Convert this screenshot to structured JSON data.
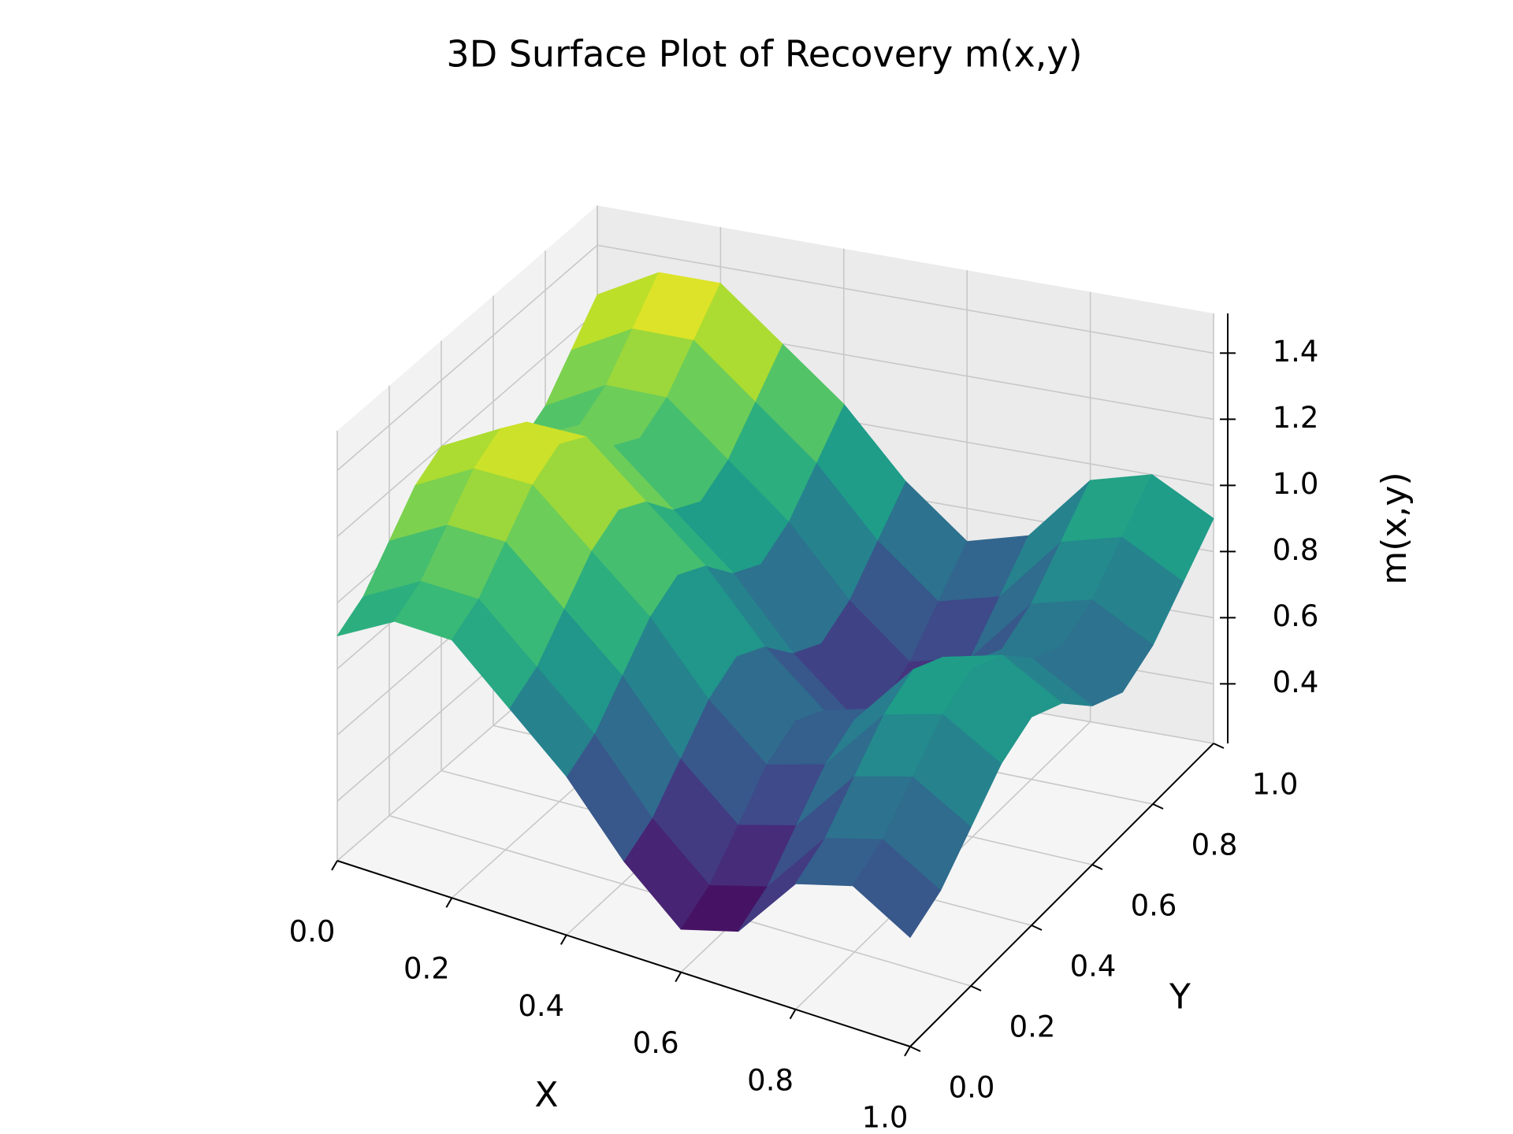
{
  "chart_data": {
    "type": "surface",
    "title": "3D Surface Plot of Recovery m(x,y)",
    "x_label": "X",
    "y_label": "Y",
    "z_label": "m(x,y)",
    "colormap": "viridis",
    "grid": true,
    "x": [
      0,
      0.1,
      0.2,
      0.3,
      0.4,
      0.5,
      0.6,
      0.7,
      0.8,
      0.9,
      1
    ],
    "y": [
      0,
      0.1,
      0.2,
      0.3,
      0.4,
      0.5,
      0.6,
      0.7,
      0.8,
      0.9,
      1
    ],
    "z": [
      [
        0.9,
        1.0,
        1.0,
        0.85,
        0.7,
        0.5,
        0.35,
        0.4,
        0.6,
        0.65,
        0.55
      ],
      [
        0.95,
        1.05,
        1.05,
        0.9,
        0.75,
        0.55,
        0.4,
        0.45,
        0.65,
        0.7,
        0.6
      ],
      [
        1.05,
        1.15,
        1.15,
        1.0,
        0.85,
        0.65,
        0.5,
        0.55,
        0.75,
        0.8,
        0.7
      ],
      [
        1.15,
        1.25,
        1.25,
        1.1,
        0.95,
        0.75,
        0.6,
        0.65,
        0.85,
        0.9,
        0.8
      ],
      [
        1.2,
        1.3,
        1.3,
        1.15,
        1.0,
        0.8,
        0.65,
        0.7,
        0.9,
        0.95,
        0.85
      ],
      [
        1.15,
        1.25,
        1.25,
        1.1,
        0.95,
        0.75,
        0.6,
        0.65,
        0.85,
        0.9,
        0.8
      ],
      [
        1.05,
        1.15,
        1.15,
        1.0,
        0.85,
        0.65,
        0.5,
        0.55,
        0.75,
        0.8,
        0.7
      ],
      [
        1.0,
        1.1,
        1.1,
        0.95,
        0.8,
        0.6,
        0.45,
        0.5,
        0.7,
        0.75,
        0.65
      ],
      [
        1.05,
        1.15,
        1.15,
        1.0,
        0.85,
        0.65,
        0.5,
        0.55,
        0.75,
        0.8,
        0.7
      ],
      [
        1.15,
        1.25,
        1.25,
        1.1,
        0.95,
        0.75,
        0.6,
        0.65,
        0.85,
        0.9,
        0.8
      ],
      [
        1.25,
        1.35,
        1.35,
        1.2,
        1.05,
        0.85,
        0.7,
        0.75,
        0.95,
        1.0,
        0.9
      ]
    ],
    "xlim": [
      0,
      1
    ],
    "ylim": [
      0,
      1
    ],
    "zlim": [
      0.22,
      1.52
    ],
    "xticks": [
      {
        "value": 0,
        "label": "0.0"
      },
      0.2,
      0.4,
      0.6,
      0.8,
      {
        "value": 1,
        "label": "1.0"
      }
    ],
    "yticks": [
      {
        "value": 0,
        "label": "0.0"
      },
      0.2,
      0.4,
      0.6,
      0.8,
      {
        "value": 1,
        "label": "1.0"
      }
    ],
    "zticks": [
      0.4,
      0.6,
      0.8,
      {
        "value": 1,
        "label": "1.0"
      },
      1.2,
      1.4
    ]
  }
}
